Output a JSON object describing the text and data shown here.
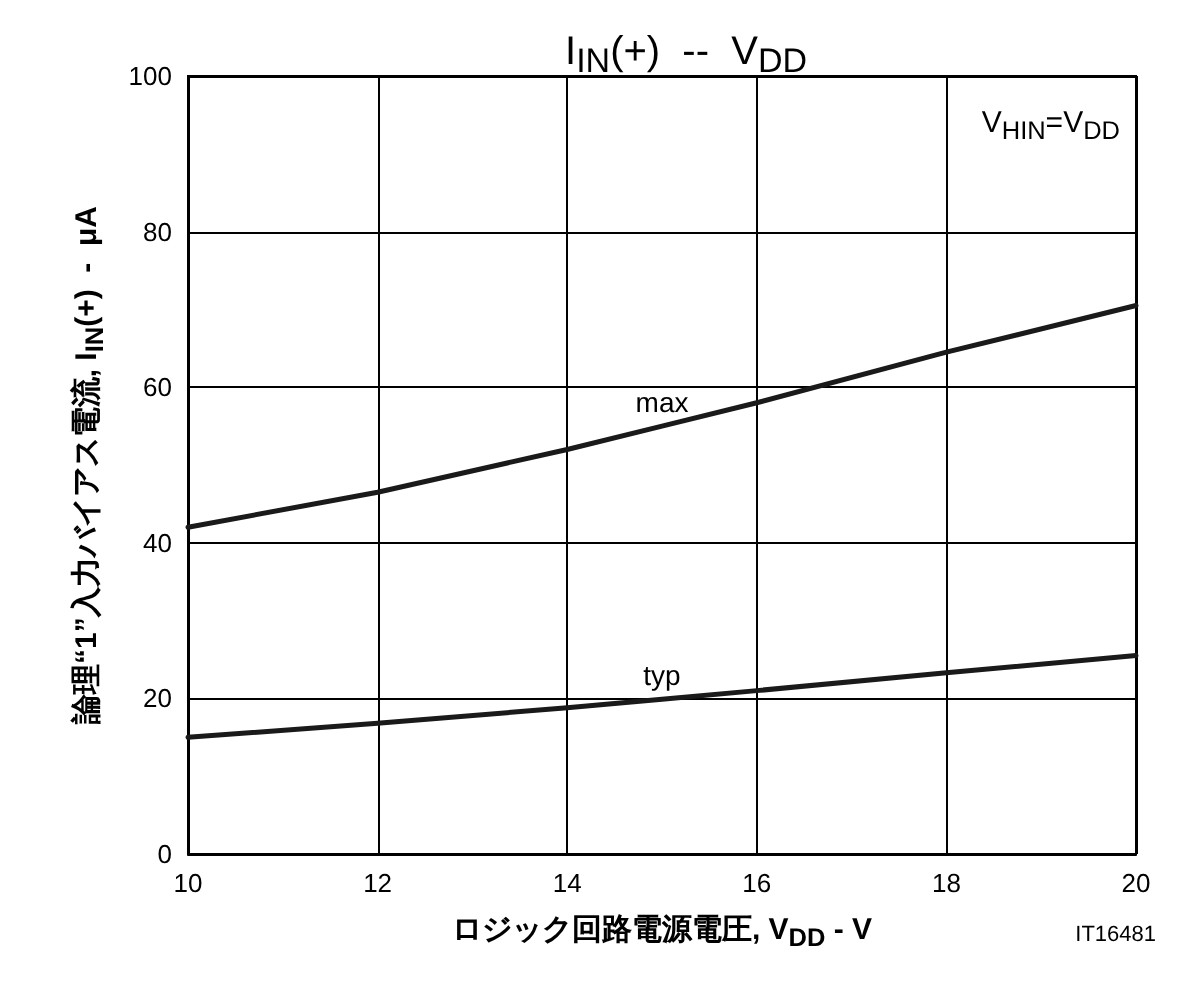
{
  "chart_data": {
    "type": "line",
    "title": "I$_{IN}$(+)  --  V$_{DD}$",
    "xlabel": "ロジック回路電源電圧, V$_{DD}$ - V",
    "ylabel": "論理“1”入力バイアス電流, I$_{IN}$(+)  -  μA",
    "x": [
      10,
      12,
      14,
      15,
      16,
      18,
      20
    ],
    "series": [
      {
        "name": "max",
        "color": "#1a1a1a",
        "values": [
          42,
          46.5,
          52,
          55,
          58,
          64.5,
          70.5
        ]
      },
      {
        "name": "typ",
        "color": "#1a1a1a",
        "values": [
          15,
          16.8,
          18.8,
          19.9,
          21,
          23.3,
          25.5
        ]
      }
    ],
    "xlim": [
      10,
      20
    ],
    "xticks": [
      10,
      12,
      14,
      16,
      18,
      20
    ],
    "ylim": [
      0,
      100
    ],
    "yticks": [
      0,
      20,
      40,
      60,
      80,
      100
    ],
    "grid": true,
    "legend": false,
    "marker": "none",
    "line_style": "solid",
    "annotations": [
      "V$_{HIN}$=V$_{DD}$",
      "IT16481"
    ]
  }
}
